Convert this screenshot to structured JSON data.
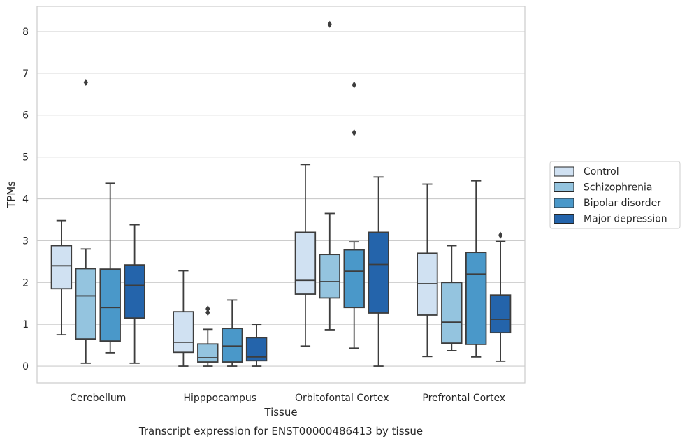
{
  "caption": "Transcript expression for ENST00000486413 by tissue",
  "chart_data": {
    "type": "boxplot",
    "xlabel": "Tissue",
    "ylabel": "TPMs",
    "ylim": [
      -0.4,
      8.6
    ],
    "yticks": [
      0,
      1,
      2,
      3,
      4,
      5,
      6,
      7,
      8
    ],
    "grid": "horizontal",
    "legend_position": "right",
    "categories": [
      "Cerebellum",
      "Hipppocampus",
      "Orbitofontal Cortex",
      "Prefrontal Cortex"
    ],
    "series": [
      {
        "name": "Control",
        "color": "#d0e1f2",
        "boxes": [
          {
            "whisker_low": 0.75,
            "q1": 1.85,
            "median": 2.4,
            "q3": 2.88,
            "whisker_high": 3.48,
            "outliers": []
          },
          {
            "whisker_low": 0.0,
            "q1": 0.33,
            "median": 0.57,
            "q3": 1.3,
            "whisker_high": 2.28,
            "outliers": []
          },
          {
            "whisker_low": 0.48,
            "q1": 1.72,
            "median": 2.05,
            "q3": 3.2,
            "whisker_high": 4.82,
            "outliers": []
          },
          {
            "whisker_low": 0.23,
            "q1": 1.22,
            "median": 1.97,
            "q3": 2.7,
            "whisker_high": 4.35,
            "outliers": []
          }
        ]
      },
      {
        "name": "Schizophrenia",
        "color": "#94c4df",
        "boxes": [
          {
            "whisker_low": 0.07,
            "q1": 0.65,
            "median": 1.68,
            "q3": 2.33,
            "whisker_high": 2.8,
            "outliers": [
              6.78
            ]
          },
          {
            "whisker_low": 0.0,
            "q1": 0.1,
            "median": 0.2,
            "q3": 0.53,
            "whisker_high": 0.88,
            "outliers": [
              1.28,
              1.37
            ]
          },
          {
            "whisker_low": 0.87,
            "q1": 1.63,
            "median": 2.02,
            "q3": 2.67,
            "whisker_high": 3.65,
            "outliers": [
              8.17
            ]
          },
          {
            "whisker_low": 0.37,
            "q1": 0.55,
            "median": 1.05,
            "q3": 2.0,
            "whisker_high": 2.88,
            "outliers": []
          }
        ]
      },
      {
        "name": "Bipolar disorder",
        "color": "#4a98c9",
        "boxes": [
          {
            "whisker_low": 0.32,
            "q1": 0.6,
            "median": 1.4,
            "q3": 2.32,
            "whisker_high": 4.37,
            "outliers": []
          },
          {
            "whisker_low": 0.0,
            "q1": 0.1,
            "median": 0.48,
            "q3": 0.9,
            "whisker_high": 1.58,
            "outliers": []
          },
          {
            "whisker_low": 0.43,
            "q1": 1.4,
            "median": 2.27,
            "q3": 2.78,
            "whisker_high": 2.97,
            "outliers": [
              5.58,
              6.72
            ]
          },
          {
            "whisker_low": 0.22,
            "q1": 0.52,
            "median": 2.2,
            "q3": 2.72,
            "whisker_high": 4.43,
            "outliers": []
          }
        ]
      },
      {
        "name": "Major depression",
        "color": "#2464ab",
        "boxes": [
          {
            "whisker_low": 0.07,
            "q1": 1.15,
            "median": 1.93,
            "q3": 2.42,
            "whisker_high": 3.38,
            "outliers": []
          },
          {
            "whisker_low": 0.0,
            "q1": 0.13,
            "median": 0.22,
            "q3": 0.68,
            "whisker_high": 1.0,
            "outliers": []
          },
          {
            "whisker_low": 0.0,
            "q1": 1.27,
            "median": 2.43,
            "q3": 3.2,
            "whisker_high": 4.52,
            "outliers": []
          },
          {
            "whisker_low": 0.12,
            "q1": 0.8,
            "median": 1.12,
            "q3": 1.7,
            "whisker_high": 2.98,
            "outliers": [
              3.13
            ]
          }
        ]
      }
    ]
  }
}
